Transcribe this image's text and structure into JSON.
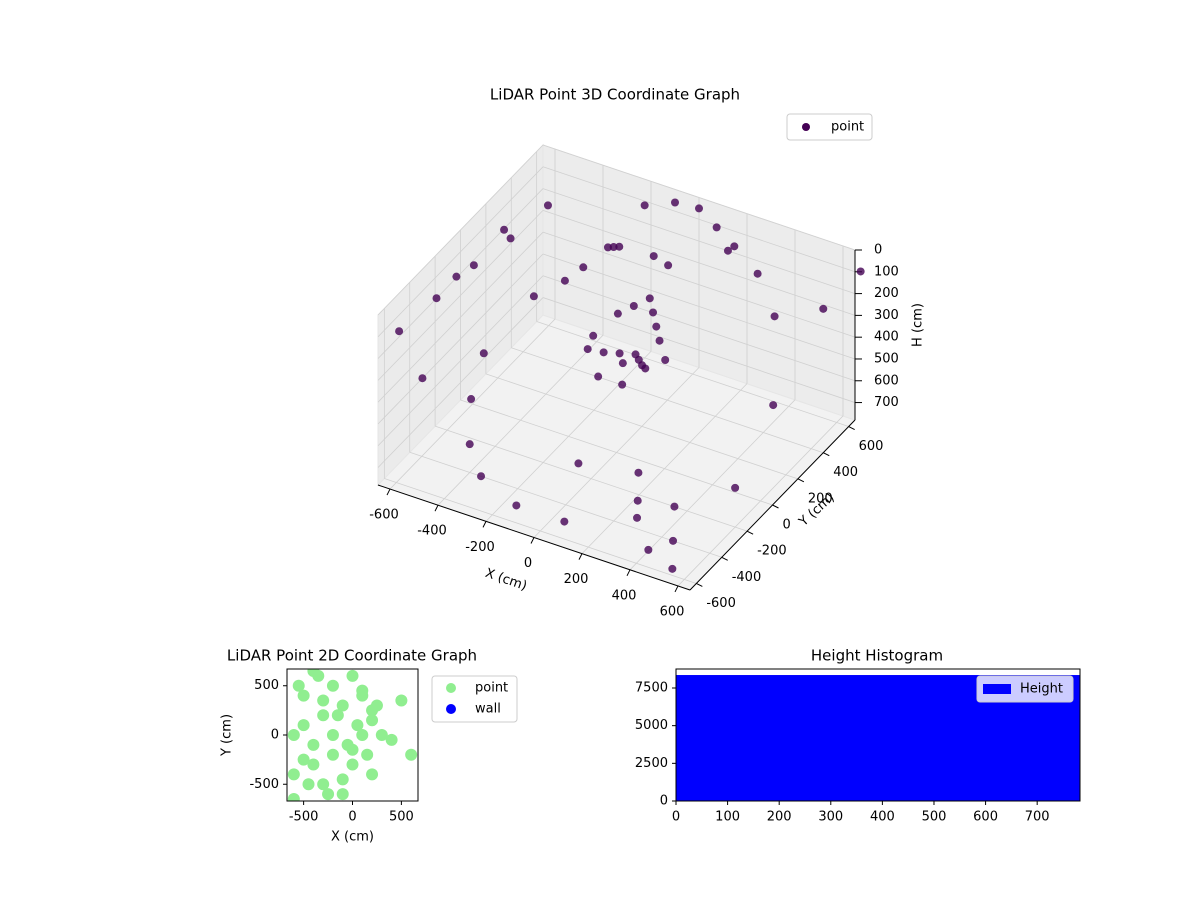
{
  "chart_data": [
    {
      "type": "scatter3d",
      "title": "LiDAR Point 3D Coordinate Graph",
      "xlabel": "X (cm)",
      "ylabel": "Y (cm)",
      "zlabel": "H (cm)",
      "legend_loc": "upper right",
      "xlim": [
        -650,
        650
      ],
      "ylim": [
        -650,
        650
      ],
      "zlim": [
        780,
        0
      ],
      "xticks": [
        -600,
        -400,
        -200,
        0,
        200,
        400,
        600
      ],
      "yticks": [
        -600,
        -400,
        -200,
        0,
        200,
        400,
        600
      ],
      "zticks": [
        0,
        100,
        200,
        300,
        400,
        500,
        600,
        700
      ],
      "series": [
        {
          "name": "point",
          "color": "#440154",
          "x": [
            -120,
            -80,
            -40,
            0,
            40,
            80,
            120,
            -100,
            -60,
            -20,
            20,
            60,
            100,
            -150,
            150,
            -50,
            50,
            0,
            -30,
            30,
            -200,
            -250,
            -300,
            -350,
            -400,
            -200,
            -100,
            0,
            100,
            200,
            -700,
            -750,
            -800,
            -680,
            -720,
            -600,
            -550,
            -500,
            -450,
            -650,
            300,
            400,
            500,
            600,
            550,
            450,
            350,
            250,
            -300,
            -400,
            -500,
            200,
            350,
            500,
            650,
            700,
            -100,
            100,
            0,
            600
          ],
          "y": [
            0,
            50,
            100,
            150,
            100,
            50,
            0,
            200,
            250,
            300,
            250,
            200,
            150,
            100,
            100,
            -50,
            -50,
            50,
            350,
            350,
            400,
            450,
            500,
            400,
            350,
            600,
            650,
            650,
            600,
            550,
            200,
            0,
            -200,
            400,
            100,
            300,
            500,
            -100,
            200,
            -300,
            -400,
            -300,
            -500,
            -200,
            -600,
            -600,
            -500,
            -300,
            -500,
            -400,
            -200,
            500,
            450,
            300,
            400,
            600,
            -600,
            -600,
            -300,
            100
          ],
          "z": [
            350,
            380,
            400,
            420,
            400,
            380,
            350,
            300,
            280,
            260,
            280,
            300,
            320,
            360,
            360,
            420,
            420,
            400,
            100,
            120,
            150,
            200,
            250,
            300,
            350,
            80,
            60,
            50,
            70,
            90,
            300,
            350,
            400,
            250,
            300,
            200,
            150,
            450,
            350,
            500,
            650,
            700,
            700,
            600,
            750,
            700,
            650,
            600,
            700,
            650,
            600,
            80,
            100,
            150,
            120,
            50,
            700,
            700,
            650,
            400
          ]
        }
      ]
    },
    {
      "type": "scatter",
      "title": "LiDAR Point 2D Coordinate Graph",
      "xlabel": "X (cm)",
      "ylabel": "Y (cm)",
      "legend_loc": "outside right",
      "xlim": [
        -670,
        670
      ],
      "ylim": [
        -670,
        670
      ],
      "xticks": [
        -500,
        0,
        500
      ],
      "yticks": [
        -500,
        0,
        500
      ],
      "series": [
        {
          "name": "point",
          "color": "#90ee90",
          "x": [
            -600,
            -500,
            -400,
            -300,
            -200,
            -100,
            0,
            100,
            200,
            300,
            -550,
            -450,
            -350,
            -250,
            -150,
            -50,
            50,
            150,
            250,
            -600,
            -500,
            -400,
            -300,
            -200,
            -100,
            0,
            100,
            200,
            -600,
            -400,
            -200,
            0,
            200,
            -500,
            -300,
            -100,
            100,
            400,
            500,
            600
          ],
          "y": [
            0,
            100,
            -100,
            200,
            -200,
            300,
            -300,
            400,
            -400,
            0,
            500,
            -500,
            600,
            -600,
            200,
            -100,
            100,
            -200,
            300,
            -400,
            400,
            -300,
            -500,
            500,
            -600,
            600,
            0,
            250,
            -650,
            650,
            0,
            -150,
            150,
            -250,
            350,
            -450,
            450,
            -50,
            350,
            -200
          ]
        },
        {
          "name": "wall",
          "color": "#0000ff",
          "x": [],
          "y": []
        }
      ]
    },
    {
      "type": "histogram",
      "title": "Height Histogram",
      "legend_loc": "upper right",
      "xlim": [
        0,
        783
      ],
      "ylim": [
        0,
        8760
      ],
      "xticks": [
        0,
        100,
        200,
        300,
        400,
        500,
        600,
        700
      ],
      "yticks": [
        0,
        2500,
        5000,
        7500
      ],
      "series": [
        {
          "name": "Height",
          "color": "#0000ff",
          "bins": [
            0,
            783
          ],
          "values": [
            8360
          ]
        }
      ]
    }
  ]
}
